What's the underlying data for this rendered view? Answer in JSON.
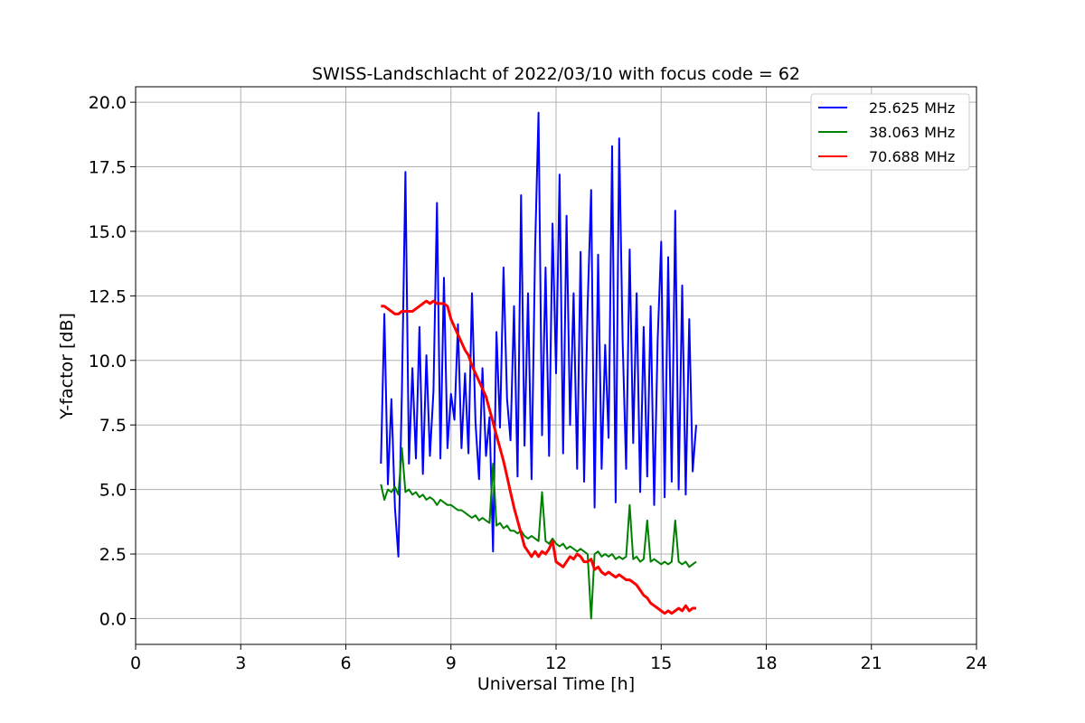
{
  "chart_data": {
    "type": "line",
    "title": "SWISS-Landschlacht of 2022/03/10 with focus code = 62",
    "xlabel": "Universal Time [h]",
    "ylabel": "Y-factor [dB]",
    "xlim": [
      0,
      24
    ],
    "ylim": [
      -1.0,
      20.6
    ],
    "xticks": [
      0,
      3,
      6,
      9,
      12,
      15,
      18,
      21,
      24
    ],
    "xtick_labels": [
      "0",
      "3",
      "6",
      "9",
      "12",
      "15",
      "18",
      "21",
      "24"
    ],
    "yticks": [
      0.0,
      2.5,
      5.0,
      7.5,
      10.0,
      12.5,
      15.0,
      17.5,
      20.0
    ],
    "ytick_labels": [
      "0.0",
      "2.5",
      "5.0",
      "7.5",
      "10.0",
      "12.5",
      "15.0",
      "17.5",
      "20.0"
    ],
    "grid": true,
    "legend_position": "top-right",
    "series": [
      {
        "name": "25.625 MHz",
        "color": "#0000ff",
        "x": [
          7.0,
          7.1,
          7.2,
          7.3,
          7.4,
          7.5,
          7.6,
          7.7,
          7.8,
          7.9,
          8.0,
          8.1,
          8.2,
          8.3,
          8.4,
          8.5,
          8.6,
          8.7,
          8.8,
          8.9,
          9.0,
          9.1,
          9.2,
          9.3,
          9.4,
          9.5,
          9.6,
          9.7,
          9.8,
          9.9,
          10.0,
          10.1,
          10.2,
          10.3,
          10.4,
          10.5,
          10.6,
          10.7,
          10.8,
          10.9,
          11.0,
          11.1,
          11.2,
          11.3,
          11.4,
          11.5,
          11.6,
          11.7,
          11.8,
          11.9,
          12.0,
          12.1,
          12.2,
          12.3,
          12.4,
          12.5,
          12.6,
          12.7,
          12.8,
          12.9,
          13.0,
          13.1,
          13.2,
          13.3,
          13.4,
          13.5,
          13.6,
          13.7,
          13.8,
          13.9,
          14.0,
          14.1,
          14.2,
          14.3,
          14.4,
          14.5,
          14.6,
          14.7,
          14.8,
          14.9,
          15.0,
          15.1,
          15.2,
          15.3,
          15.4,
          15.5,
          15.6,
          15.7,
          15.8,
          15.9,
          16.0
        ],
        "y": [
          6.0,
          11.8,
          5.2,
          8.5,
          4.3,
          2.4,
          8.8,
          17.3,
          6.0,
          9.7,
          6.2,
          11.3,
          5.6,
          10.2,
          6.3,
          8.8,
          16.1,
          6.2,
          13.2,
          6.6,
          8.7,
          7.7,
          11.4,
          6.6,
          9.5,
          6.4,
          12.6,
          7.6,
          5.4,
          9.7,
          6.3,
          7.8,
          2.6,
          11.1,
          7.4,
          13.6,
          8.5,
          6.9,
          12.1,
          5.5,
          16.4,
          6.7,
          12.6,
          5.4,
          14.3,
          19.6,
          7.1,
          13.6,
          6.3,
          15.3,
          9.5,
          17.2,
          6.4,
          15.6,
          7.5,
          12.6,
          5.8,
          14.2,
          5.3,
          12.1,
          16.6,
          4.3,
          14.1,
          5.8,
          10.6,
          7.0,
          18.3,
          4.5,
          18.6,
          10.8,
          5.8,
          14.3,
          6.8,
          12.6,
          4.9,
          11.3,
          5.5,
          12.1,
          4.4,
          10.8,
          14.6,
          4.7,
          14.0,
          5.3,
          15.8,
          5.0,
          12.9,
          4.8,
          11.6,
          5.7,
          7.5
        ]
      },
      {
        "name": "38.063 MHz",
        "color": "#008000",
        "x": [
          7.0,
          7.1,
          7.2,
          7.3,
          7.4,
          7.5,
          7.6,
          7.7,
          7.8,
          7.9,
          8.0,
          8.1,
          8.2,
          8.3,
          8.4,
          8.5,
          8.6,
          8.7,
          8.8,
          8.9,
          9.0,
          9.1,
          9.2,
          9.3,
          9.4,
          9.5,
          9.6,
          9.7,
          9.8,
          9.9,
          10.0,
          10.1,
          10.2,
          10.3,
          10.4,
          10.5,
          10.6,
          10.7,
          10.8,
          10.9,
          11.0,
          11.1,
          11.2,
          11.3,
          11.4,
          11.5,
          11.6,
          11.7,
          11.8,
          11.9,
          12.0,
          12.1,
          12.2,
          12.3,
          12.4,
          12.5,
          12.6,
          12.7,
          12.8,
          12.9,
          13.0,
          13.1,
          13.2,
          13.3,
          13.4,
          13.5,
          13.6,
          13.7,
          13.8,
          13.9,
          14.0,
          14.1,
          14.2,
          14.3,
          14.4,
          14.5,
          14.6,
          14.7,
          14.8,
          14.9,
          15.0,
          15.1,
          15.2,
          15.3,
          15.4,
          15.5,
          15.6,
          15.7,
          15.8,
          15.9,
          16.0
        ],
        "y": [
          5.2,
          4.6,
          5.0,
          4.9,
          5.1,
          4.8,
          6.6,
          4.9,
          5.0,
          4.8,
          4.9,
          4.7,
          4.8,
          4.6,
          4.7,
          4.6,
          4.4,
          4.6,
          4.5,
          4.4,
          4.4,
          4.3,
          4.2,
          4.2,
          4.1,
          4.0,
          3.9,
          4.0,
          3.8,
          3.9,
          3.8,
          3.7,
          6.0,
          3.6,
          3.7,
          3.5,
          3.6,
          3.4,
          3.4,
          3.3,
          3.4,
          3.2,
          3.1,
          3.2,
          3.1,
          3.0,
          4.9,
          3.0,
          2.9,
          3.1,
          2.9,
          2.8,
          2.9,
          2.7,
          2.8,
          2.7,
          2.6,
          2.7,
          2.6,
          2.5,
          0.0,
          2.5,
          2.6,
          2.4,
          2.5,
          2.4,
          2.5,
          2.3,
          2.4,
          2.3,
          2.4,
          4.4,
          2.3,
          2.4,
          2.2,
          2.3,
          3.8,
          2.2,
          2.3,
          2.2,
          2.1,
          2.2,
          2.1,
          2.2,
          3.8,
          2.2,
          2.1,
          2.2,
          2.0,
          2.1,
          2.2
        ]
      },
      {
        "name": "70.688 MHz",
        "color": "#ff0000",
        "x": [
          7.0,
          7.1,
          7.2,
          7.3,
          7.4,
          7.5,
          7.6,
          7.7,
          7.8,
          7.9,
          8.0,
          8.1,
          8.2,
          8.3,
          8.4,
          8.5,
          8.6,
          8.7,
          8.8,
          8.9,
          9.0,
          9.1,
          9.2,
          9.3,
          9.4,
          9.5,
          9.6,
          9.7,
          9.8,
          9.9,
          10.0,
          10.1,
          10.2,
          10.3,
          10.4,
          10.5,
          10.6,
          10.7,
          10.8,
          10.9,
          11.0,
          11.1,
          11.2,
          11.3,
          11.4,
          11.5,
          11.6,
          11.7,
          11.8,
          11.9,
          12.0,
          12.1,
          12.2,
          12.3,
          12.4,
          12.5,
          12.6,
          12.7,
          12.8,
          12.9,
          13.0,
          13.1,
          13.2,
          13.3,
          13.4,
          13.5,
          13.6,
          13.7,
          13.8,
          13.9,
          14.0,
          14.1,
          14.2,
          14.3,
          14.4,
          14.5,
          14.6,
          14.7,
          14.8,
          14.9,
          15.0,
          15.1,
          15.2,
          15.3,
          15.4,
          15.5,
          15.6,
          15.7,
          15.8,
          15.9,
          16.0
        ],
        "y": [
          12.1,
          12.1,
          12.0,
          11.9,
          11.8,
          11.8,
          11.9,
          11.9,
          11.9,
          11.9,
          12.0,
          12.1,
          12.2,
          12.3,
          12.2,
          12.3,
          12.2,
          12.2,
          12.2,
          12.1,
          11.6,
          11.3,
          11.0,
          10.7,
          10.4,
          10.2,
          9.8,
          9.5,
          9.2,
          8.9,
          8.6,
          8.1,
          7.6,
          7.1,
          6.6,
          6.1,
          5.5,
          4.9,
          4.3,
          3.8,
          3.3,
          2.8,
          2.6,
          2.4,
          2.6,
          2.4,
          2.6,
          2.5,
          2.7,
          3.0,
          2.2,
          2.1,
          2.0,
          2.2,
          2.4,
          2.3,
          2.5,
          2.4,
          2.2,
          2.2,
          2.3,
          1.9,
          2.0,
          1.8,
          1.7,
          1.8,
          1.7,
          1.6,
          1.7,
          1.6,
          1.5,
          1.5,
          1.4,
          1.3,
          1.1,
          0.9,
          0.8,
          0.6,
          0.5,
          0.4,
          0.3,
          0.2,
          0.3,
          0.2,
          0.3,
          0.4,
          0.3,
          0.5,
          0.3,
          0.4,
          0.4
        ]
      }
    ]
  }
}
